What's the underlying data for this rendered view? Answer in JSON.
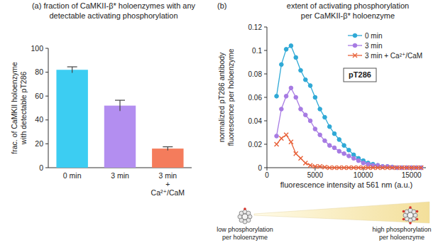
{
  "chart_data": [
    {
      "type": "bar",
      "title": "(a) fraction of CaMKII-β* holoenzymes with any\ndetectable activating phosphorylation",
      "ylabel": "frac. of CaMKII holoenzyme\nwith detectable pT286",
      "categories": [
        "0 min",
        "3 min",
        "3 min\n+\nCa²⁺/CaM"
      ],
      "values": [
        82,
        52,
        16
      ],
      "errors": [
        2.5,
        4.5,
        1.5
      ],
      "colors": [
        "#3ccdf2",
        "#b38ef0",
        "#f47c5c"
      ],
      "ylim": [
        0,
        100
      ],
      "yticks": [
        0,
        20,
        40,
        60,
        80,
        100
      ],
      "grid": false
    },
    {
      "type": "line",
      "title": "extent of activating phosphorylation\nper CaMKII-β* holoenzyme",
      "annotations": [
        "(b)",
        "pT286"
      ],
      "xlabel": "fluorescence intensity at 561 nm (a.u.)",
      "ylabel": "normalized pT286 antibody\nfluorescence per holoenzyme",
      "x": [
        1000,
        1500,
        2000,
        2500,
        3000,
        3500,
        4000,
        4500,
        5000,
        5500,
        6000,
        6500,
        7000,
        7500,
        8000,
        8500,
        9000,
        9500,
        10000,
        10500,
        11000,
        11500,
        12000,
        12500,
        13000,
        13500,
        14000,
        14500,
        15000,
        15500,
        16000
      ],
      "series": [
        {
          "name": "0 min",
          "color": "#2fa9d6",
          "marker": "circle",
          "values": [
            0.061,
            0.088,
            0.101,
            0.104,
            0.094,
            0.083,
            0.075,
            0.07,
            0.06,
            0.05,
            0.043,
            0.035,
            0.029,
            0.024,
            0.019,
            0.015,
            0.011,
            0.008,
            0.006,
            0.004,
            0.003,
            0.002,
            0.001,
            0.001,
            0.0005,
            0,
            0,
            0,
            0,
            0,
            0
          ]
        },
        {
          "name": "3 min",
          "color": "#a77be3",
          "marker": "circle",
          "values": [
            0.027,
            0.05,
            0.061,
            0.068,
            0.06,
            0.05,
            0.045,
            0.04,
            0.033,
            0.028,
            0.023,
            0.019,
            0.017,
            0.014,
            0.012,
            0.01,
            0.008,
            0.006,
            0.004,
            0.003,
            0.002,
            0.002,
            0.001,
            0.001,
            0.0005,
            0,
            0,
            0,
            0,
            0,
            0
          ]
        },
        {
          "name": "3 min + Ca²⁺/CaM",
          "color": "#e8623a",
          "marker": "x",
          "values": [
            0.02,
            0.025,
            0.028,
            0.022,
            0.012,
            0.008,
            0.004,
            0.002,
            0.001,
            0.001,
            0.0005,
            0,
            0,
            0,
            0,
            0,
            0,
            0,
            0,
            0,
            0,
            0,
            0,
            0,
            0,
            0,
            0,
            0,
            0,
            0,
            0
          ]
        }
      ],
      "xlim": [
        0,
        16500
      ],
      "xticks": [
        0,
        5000,
        10000,
        15000
      ],
      "ylim": [
        0,
        0.12
      ],
      "yticks": [
        0,
        0.02,
        0.04,
        0.06,
        0.08,
        0.1,
        0.12
      ],
      "legend": "upper right",
      "grid": false
    }
  ],
  "schematic": {
    "low_label": "low phosphorylation\nper holoenzyme",
    "high_label": "high phosphorylation\nper holoenzyme"
  }
}
